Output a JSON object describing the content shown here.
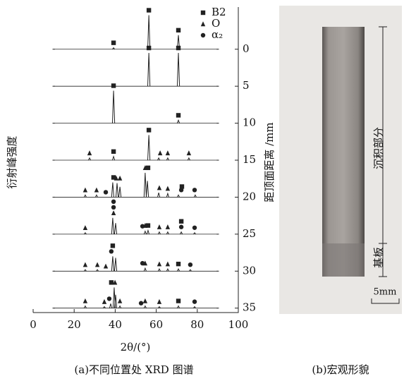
{
  "chart_data": {
    "type": "xrd-stack",
    "xlabel": "2θ/(°)",
    "ylabel": "衍射峰强度",
    "y2label": "距顶面距离 /mm",
    "caption": "(a)不同位置处 XRD 图谱",
    "xlim": [
      0,
      100
    ],
    "xticks": [
      0,
      20,
      40,
      60,
      80,
      100
    ],
    "y2lim": [
      -5.7,
      35.6
    ],
    "y2ticks": [
      0,
      5,
      10,
      15,
      20,
      25,
      30,
      35
    ],
    "legend": [
      {
        "name": "B2",
        "marker": "square"
      },
      {
        "name": "O",
        "marker": "triangle"
      },
      {
        "name": "α₂",
        "marker": "circle"
      }
    ],
    "color": "#222",
    "series": [
      {
        "x": [
          10,
          39.2,
          56.4,
          70.8,
          90
        ],
        "values": [
          0,
          0.2,
          4.6,
          1.9,
          0
        ],
        "markers_x": [
          39.2,
          56.4,
          70.8
        ],
        "markers_phase": [
          0,
          0,
          0
        ]
      },
      {
        "x": [
          10,
          56.4,
          70.8,
          90
        ],
        "values": [
          0,
          4.5,
          4.5,
          0
        ],
        "markers_x": [
          56.4,
          70.8
        ],
        "markers_phase": [
          0,
          0
        ]
      },
      {
        "x": [
          10,
          39.2,
          70.8,
          90
        ],
        "values": [
          0,
          4.4,
          0.4,
          0
        ],
        "markers_x": [
          39.2,
          70.8
        ],
        "markers_phase": [
          0,
          0
        ]
      },
      {
        "x": [
          10,
          27.5,
          39.2,
          56.4,
          61.2,
          65.6,
          75.9,
          90
        ],
        "values": [
          0,
          0.3,
          0.5,
          3.4,
          0.3,
          0.3,
          0.3,
          0
        ],
        "markers_x": [
          27.5,
          39.2,
          56.4,
          61.9,
          65.6,
          75.9
        ],
        "markers_phase": [
          1,
          0,
          0,
          1,
          1,
          1
        ]
      },
      {
        "x": [
          10,
          25.4,
          30.9,
          38.8,
          40.9,
          42.3,
          54.6,
          55.7,
          61.2,
          65.6,
          70.8,
          79.0,
          90
        ],
        "values": [
          0,
          0.3,
          0.3,
          2.0,
          1.9,
          1.4,
          3.3,
          2.2,
          0.6,
          0.5,
          0.3,
          0.3,
          0
        ],
        "markers_x": [
          25.4,
          30.9,
          35.4,
          39.2,
          40.5,
          42.3,
          54.6,
          56.0,
          61.5,
          65.6,
          72.2,
          72.5,
          78.7
        ],
        "markers_phase": [
          1,
          1,
          2,
          0,
          1,
          1,
          1,
          0,
          1,
          1,
          2,
          0,
          2
        ]
      },
      {
        "x": [
          10,
          25.4,
          38.8,
          40.2,
          54.6,
          56.0,
          61.5,
          65.6,
          72.2,
          78.7,
          90
        ],
        "values": [
          0,
          0.2,
          2.2,
          1.5,
          0.4,
          0.5,
          0.3,
          0.3,
          0.3,
          0.2,
          0
        ],
        "markers_x": [
          25.4,
          39.2,
          39.2,
          39.2,
          53.3,
          54.6,
          56.0,
          61.5,
          65.6,
          72.2,
          72.2,
          78.7
        ],
        "markers_phase": [
          1,
          1,
          2,
          2,
          2,
          1,
          0,
          1,
          1,
          2,
          0,
          2
        ]
      },
      {
        "x": [
          10,
          25.4,
          31.3,
          38.8,
          40.2,
          54.6,
          61.5,
          65.6,
          70.8,
          76.6,
          90
        ],
        "values": [
          0,
          0.2,
          0.2,
          2.0,
          1.8,
          0.4,
          0.3,
          0.3,
          0.3,
          0.2,
          0
        ],
        "markers_x": [
          25.4,
          31.3,
          35.4,
          38.1,
          38.8,
          53.3,
          54.6,
          61.5,
          65.6,
          70.8,
          76.6
        ],
        "markers_phase": [
          1,
          1,
          1,
          2,
          0,
          2,
          1,
          1,
          1,
          0,
          2
        ]
      },
      {
        "x": [
          10,
          25.4,
          34.7,
          37.8,
          39.5,
          40.2,
          42.3,
          54.6,
          61.5,
          70.8,
          78.7,
          90
        ],
        "values": [
          0,
          0.3,
          0.2,
          0.6,
          2.8,
          1.8,
          0.3,
          0.3,
          0.2,
          0.3,
          0.2,
          0
        ],
        "markers_x": [
          25.4,
          34.7,
          37.1,
          38.1,
          39.9,
          42.3,
          52.6,
          54.6,
          61.5,
          70.8,
          78.7
        ],
        "markers_phase": [
          1,
          1,
          2,
          0,
          1,
          1,
          2,
          1,
          1,
          0,
          2
        ]
      }
    ]
  },
  "photo": {
    "labels": [
      "沉积部分",
      "基板"
    ],
    "scale": "5mm",
    "caption": "(b)宏观形貌"
  }
}
